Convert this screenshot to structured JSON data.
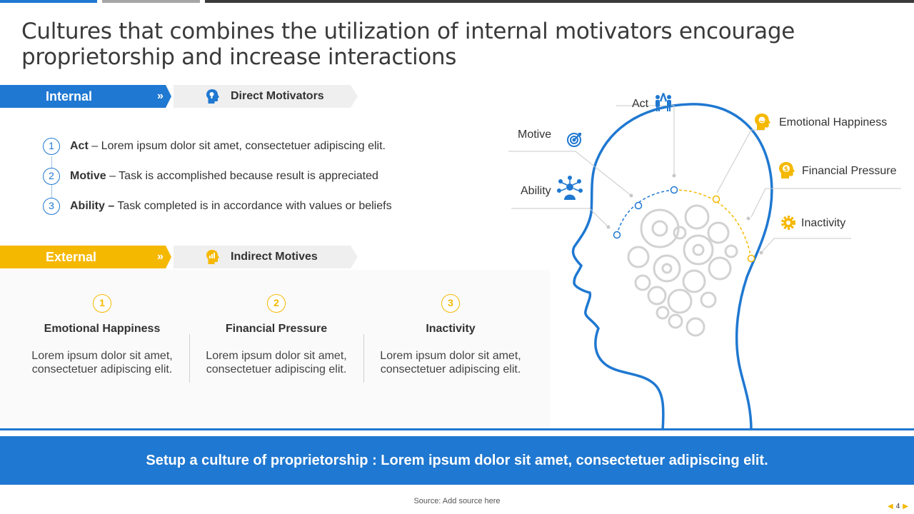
{
  "title": "Cultures that combines the utilization of internal motivators encourage proprietorship and increase interactions",
  "internal": {
    "label": "Internal",
    "arrows": "»",
    "tag": "Direct Motivators",
    "items": [
      {
        "num": "1",
        "name": "Act",
        "sep": " – ",
        "text": "Lorem ipsum dolor sit amet, consectetuer  adipiscing elit."
      },
      {
        "num": "2",
        "name": "Motive",
        "sep": " – ",
        "text": "Task is accomplished because result is appreciated"
      },
      {
        "num": "3",
        "name": "Ability –",
        "sep": " ",
        "text": "Task completed is in accordance with values or beliefs"
      }
    ]
  },
  "external": {
    "label": "External",
    "arrows": "»",
    "tag": "Indirect Motives",
    "items": [
      {
        "num": "1",
        "title": "Emotional Happiness",
        "desc": "Lorem ipsum dolor sit amet, consectetuer adipiscing elit."
      },
      {
        "num": "2",
        "title": "Financial Pressure",
        "desc": "Lorem ipsum dolor sit amet, consectetuer adipiscing elit."
      },
      {
        "num": "3",
        "title": "Inactivity",
        "desc": "Lorem ipsum dolor sit amet, consectetuer adipiscing elit."
      }
    ]
  },
  "head_labels": {
    "act": "Act",
    "motive": "Motive",
    "ability": "Ability",
    "emotional": "Emotional Happiness",
    "financial": "Financial Pressure",
    "inactivity": "Inactivity"
  },
  "banner": "Setup a culture of proprietorship  : Lorem ipsum dolor sit amet, consectetuer adipiscing  elit.",
  "source": "Source:  Add source here",
  "page_number": "4",
  "colors": {
    "blue": "#1f78d1",
    "yellow": "#f5b800",
    "gray": "#efefef"
  },
  "icons": [
    "head-bulb-icon",
    "head-chart-icon",
    "high-five-icon",
    "target-icon",
    "network-icon",
    "happy-head-icon",
    "money-head-icon",
    "gear-icon",
    "gears-icon"
  ]
}
